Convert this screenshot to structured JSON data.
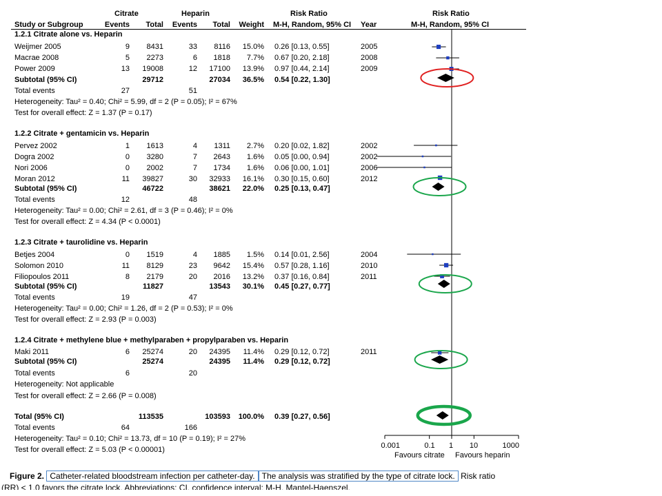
{
  "header": {
    "group1": "Citrate",
    "group2": "Heparin",
    "effect_title": "Risk Ratio",
    "plot_title": "Risk Ratio",
    "col_study": "Study or Subgroup",
    "col_events1": "Events",
    "col_total1": "Total",
    "col_events2": "Events",
    "col_total2": "Total",
    "col_weight": "Weight",
    "col_method": "M-H, Random, 95% CI",
    "col_year": "Year",
    "plot_method": "M-H, Random, 95% CI"
  },
  "subgroups": [
    {
      "title": "1.2.1 Citrate alone vs. Heparin",
      "studies": [
        {
          "name": "Weijmer 2005",
          "e1": "9",
          "t1": "8431",
          "e2": "33",
          "t2": "8116",
          "w": "15.0%",
          "ci": "0.26 [0.13, 0.55]",
          "year": "2005"
        },
        {
          "name": "Macrae 2008",
          "e1": "5",
          "t1": "2273",
          "e2": "6",
          "t2": "1818",
          "w": "7.7%",
          "ci": "0.67 [0.20, 2.18]",
          "year": "2008"
        },
        {
          "name": "Power 2009",
          "e1": "13",
          "t1": "19008",
          "e2": "12",
          "t2": "17100",
          "w": "13.9%",
          "ci": "0.97 [0.44, 2.14]",
          "year": "2009"
        }
      ],
      "subtotal": {
        "label": "Subtotal (95% CI)",
        "t1": "29712",
        "t2": "27034",
        "w": "36.5%",
        "ci": "0.54 [0.22, 1.30]"
      },
      "events": {
        "label": "Total events",
        "e1": "27",
        "e2": "51"
      },
      "het": "Heterogeneity: Tau² = 0.40; Chi² = 5.99, df = 2 (P = 0.05); I² = 67%",
      "test": "Test for overall effect: Z = 1.37 (P = 0.17)"
    },
    {
      "title": "1.2.2 Citrate + gentamicin vs. Heparin",
      "studies": [
        {
          "name": "Pervez 2002",
          "e1": "1",
          "t1": "1613",
          "e2": "4",
          "t2": "1311",
          "w": "2.7%",
          "ci": "0.20 [0.02, 1.82]",
          "year": "2002"
        },
        {
          "name": "Dogra 2002",
          "e1": "0",
          "t1": "3280",
          "e2": "7",
          "t2": "2643",
          "w": "1.6%",
          "ci": "0.05 [0.00, 0.94]",
          "year": "2002"
        },
        {
          "name": "Nori 2006",
          "e1": "0",
          "t1": "2002",
          "e2": "7",
          "t2": "1734",
          "w": "1.6%",
          "ci": "0.06 [0.00, 1.01]",
          "year": "2006"
        },
        {
          "name": "Moran 2012",
          "e1": "11",
          "t1": "39827",
          "e2": "30",
          "t2": "32933",
          "w": "16.1%",
          "ci": "0.30 [0.15, 0.60]",
          "year": "2012"
        }
      ],
      "subtotal": {
        "label": "Subtotal (95% CI)",
        "t1": "46722",
        "t2": "38621",
        "w": "22.0%",
        "ci": "0.25 [0.13, 0.47]"
      },
      "events": {
        "label": "Total events",
        "e1": "12",
        "e2": "48"
      },
      "het": "Heterogeneity: Tau² = 0.00; Chi² = 2.61, df = 3 (P = 0.46); I² = 0%",
      "test": "Test for overall effect: Z = 4.34 (P < 0.0001)"
    },
    {
      "title": "1.2.3 Citrate + taurolidine vs. Heparin",
      "studies": [
        {
          "name": "Betjes 2004",
          "e1": "0",
          "t1": "1519",
          "e2": "4",
          "t2": "1885",
          "w": "1.5%",
          "ci": "0.14 [0.01, 2.56]",
          "year": "2004"
        },
        {
          "name": "Solomon 2010",
          "e1": "11",
          "t1": "8129",
          "e2": "23",
          "t2": "9642",
          "w": "15.4%",
          "ci": "0.57 [0.28, 1.16]",
          "year": "2010"
        },
        {
          "name": "Filiopoulos 2011",
          "e1": "8",
          "t1": "2179",
          "e2": "20",
          "t2": "2016",
          "w": "13.2%",
          "ci": "0.37 [0.16, 0.84]",
          "year": "2011"
        }
      ],
      "subtotal": {
        "label": "Subtotal (95% CI)",
        "t1": "11827",
        "t2": "13543",
        "w": "30.1%",
        "ci": "0.45 [0.27, 0.77]"
      },
      "events": {
        "label": "Total events",
        "e1": "19",
        "e2": "47"
      },
      "het": "Heterogeneity: Tau² = 0.00; Chi² = 1.26, df = 2 (P = 0.53); I² = 0%",
      "test": "Test for overall effect: Z = 2.93 (P = 0.003)"
    },
    {
      "title": "1.2.4 Citrate + methylene blue + methylparaben + propylparaben vs. Heparin",
      "studies": [
        {
          "name": "Maki 2011",
          "e1": "6",
          "t1": "25274",
          "e2": "20",
          "t2": "24395",
          "w": "11.4%",
          "ci": "0.29 [0.12, 0.72]",
          "year": "2011"
        }
      ],
      "subtotal": {
        "label": "Subtotal (95% CI)",
        "t1": "25274",
        "t2": "24395",
        "w": "11.4%",
        "ci": "0.29 [0.12, 0.72]"
      },
      "events": {
        "label": "Total events",
        "e1": "6",
        "e2": "20"
      },
      "het": "Heterogeneity: Not applicable",
      "test": "Test for overall effect: Z = 2.66 (P = 0.008)"
    }
  ],
  "total": {
    "label": "Total (95% CI)",
    "t1": "113535",
    "t2": "103593",
    "w": "100.0%",
    "ci": "0.39 [0.27, 0.56]",
    "events_label": "Total events",
    "e1": "64",
    "e2": "166",
    "het": "Heterogeneity: Tau² = 0.10; Chi² = 13.73, df = 10 (P = 0.19); I² = 27%",
    "test": "Test for overall effect: Z = 5.03 (P < 0.00001)"
  },
  "axis": {
    "ticks": [
      "0.001",
      "0.1",
      "1",
      "10",
      "1000"
    ],
    "left_label": "Favours citrate",
    "right_label": "Favours heparin"
  },
  "caption": {
    "label": "Figure 2.",
    "part1": "Catheter-related bloodstream infection per catheter-day.",
    "part2": "The analysis was stratified by the type of citrate lock.",
    "part3": "Risk ratio",
    "line2": "(RR) < 1.0 favors the citrate lock. Abbreviations: CI, confidence interval; M-H, Mantel-Haenszel."
  },
  "colors": {
    "study_marker": "#1f3fbf",
    "ellipse_red": "#e02020",
    "ellipse_green": "#1aa64b",
    "caption_box": "#4f86c6"
  },
  "chart_data": {
    "type": "forest",
    "x_scale": "log",
    "xlim": [
      0.001,
      1000
    ],
    "x_ticks": [
      0.001,
      0.1,
      1,
      10,
      1000
    ],
    "null_line": 1,
    "studies": [
      {
        "rr": 0.26,
        "lo": 0.13,
        "hi": 0.55
      },
      {
        "rr": 0.67,
        "lo": 0.2,
        "hi": 2.18
      },
      {
        "rr": 0.97,
        "lo": 0.44,
        "hi": 2.14
      },
      {
        "rr": 0.2,
        "lo": 0.02,
        "hi": 1.82
      },
      {
        "rr": 0.05,
        "lo": 0.0,
        "hi": 0.94
      },
      {
        "rr": 0.06,
        "lo": 0.0,
        "hi": 1.01
      },
      {
        "rr": 0.3,
        "lo": 0.15,
        "hi": 0.6
      },
      {
        "rr": 0.14,
        "lo": 0.01,
        "hi": 2.56
      },
      {
        "rr": 0.57,
        "lo": 0.28,
        "hi": 1.16
      },
      {
        "rr": 0.37,
        "lo": 0.16,
        "hi": 0.84
      },
      {
        "rr": 0.29,
        "lo": 0.12,
        "hi": 0.72
      }
    ],
    "summaries": [
      {
        "rr": 0.54,
        "lo": 0.22,
        "hi": 1.3,
        "highlight": "red"
      },
      {
        "rr": 0.25,
        "lo": 0.13,
        "hi": 0.47,
        "highlight": "green"
      },
      {
        "rr": 0.45,
        "lo": 0.27,
        "hi": 0.77,
        "highlight": "green"
      },
      {
        "rr": 0.29,
        "lo": 0.12,
        "hi": 0.72,
        "highlight": "green"
      },
      {
        "rr": 0.39,
        "lo": 0.27,
        "hi": 0.56,
        "highlight": "green-bold"
      }
    ]
  }
}
